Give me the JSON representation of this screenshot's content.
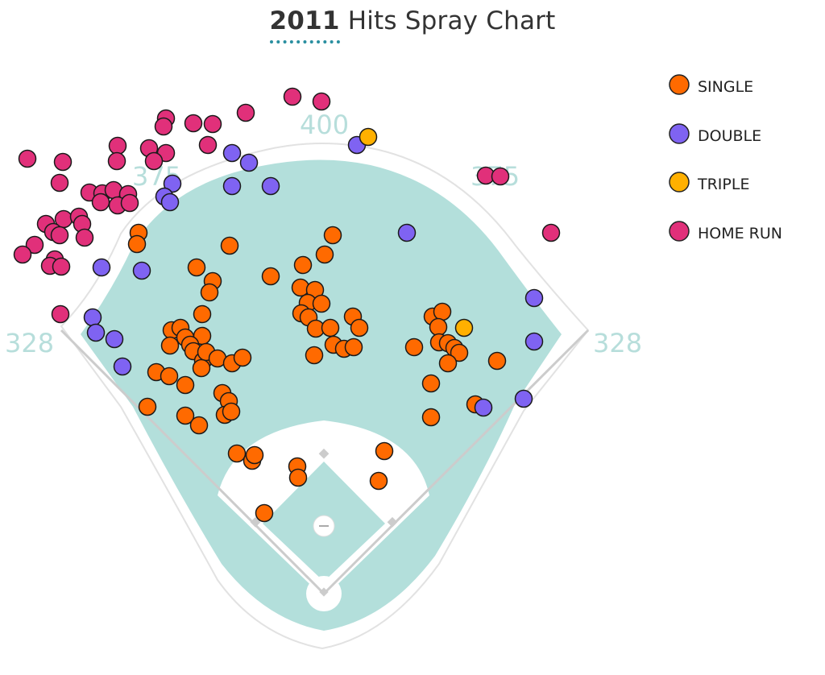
{
  "header": {
    "year": "2011",
    "title_rest": "Hits Spray Chart"
  },
  "distance_labels": {
    "left_line": "328",
    "left_center": "375",
    "center": "400",
    "right_center": "375",
    "right_line": "328"
  },
  "colors": {
    "SINGLE": "#ff6a00",
    "DOUBLE": "#7f63f2",
    "TRIPLE": "#ffb000",
    "HOME RUN": "#e1307a",
    "field": "#b3dfdb",
    "infield": "#ffffff",
    "lines": "#cccccc"
  },
  "chart_data": {
    "type": "scatter",
    "title": "2011 Hits Spray Chart",
    "legend": [
      "SINGLE",
      "DOUBLE",
      "TRIPLE",
      "HOME RUN"
    ],
    "legend_position": "top-right",
    "series": [
      {
        "name": "SINGLE",
        "points": [
          [
            285,
            305
          ],
          [
            244,
            332
          ],
          [
            264,
            349
          ],
          [
            260,
            363
          ],
          [
            336,
            343
          ],
          [
            251,
            390
          ],
          [
            213,
            410
          ],
          [
            224,
            407
          ],
          [
            230,
            419
          ],
          [
            251,
            417
          ],
          [
            211,
            429
          ],
          [
            236,
            428
          ],
          [
            240,
            436
          ],
          [
            252,
            448
          ],
          [
            256,
            437
          ],
          [
            270,
            445
          ],
          [
            288,
            451
          ],
          [
            301,
            444
          ],
          [
            250,
            457
          ],
          [
            194,
            462
          ],
          [
            210,
            467
          ],
          [
            230,
            478
          ],
          [
            276,
            488
          ],
          [
            284,
            498
          ],
          [
            279,
            515
          ],
          [
            287,
            511
          ],
          [
            183,
            505
          ],
          [
            230,
            516
          ],
          [
            247,
            528
          ],
          [
            172,
            289
          ],
          [
            170,
            303
          ],
          [
            413,
            292
          ],
          [
            403,
            316
          ],
          [
            376,
            329
          ],
          [
            373,
            357
          ],
          [
            391,
            360
          ],
          [
            382,
            376
          ],
          [
            399,
            377
          ],
          [
            374,
            389
          ],
          [
            383,
            394
          ],
          [
            392,
            408
          ],
          [
            410,
            407
          ],
          [
            414,
            428
          ],
          [
            427,
            433
          ],
          [
            439,
            431
          ],
          [
            438,
            393
          ],
          [
            446,
            407
          ],
          [
            390,
            441
          ],
          [
            514,
            431
          ],
          [
            537,
            393
          ],
          [
            549,
            387
          ],
          [
            544,
            406
          ],
          [
            545,
            425
          ],
          [
            556,
            426
          ],
          [
            564,
            432
          ],
          [
            570,
            438
          ],
          [
            556,
            451
          ],
          [
            535,
            476
          ],
          [
            617,
            448
          ],
          [
            590,
            502
          ],
          [
            535,
            518
          ],
          [
            294,
            563
          ],
          [
            313,
            572
          ],
          [
            316,
            565
          ],
          [
            369,
            579
          ],
          [
            370,
            593
          ],
          [
            477,
            560
          ],
          [
            470,
            597
          ],
          [
            328,
            637
          ]
        ]
      },
      {
        "name": "DOUBLE",
        "points": [
          [
            288,
            190
          ],
          [
            309,
            202
          ],
          [
            443,
            180
          ],
          [
            214,
            228
          ],
          [
            204,
            244
          ],
          [
            211,
            251
          ],
          [
            288,
            231
          ],
          [
            336,
            231
          ],
          [
            126,
            332
          ],
          [
            176,
            336
          ],
          [
            115,
            394
          ],
          [
            119,
            413
          ],
          [
            142,
            421
          ],
          [
            152,
            455
          ],
          [
            505,
            289
          ],
          [
            663,
            370
          ],
          [
            663,
            424
          ],
          [
            650,
            495
          ],
          [
            600,
            506
          ]
        ]
      },
      {
        "name": "TRIPLE",
        "points": [
          [
            457,
            170
          ],
          [
            576,
            407
          ]
        ]
      },
      {
        "name": "HOME RUN",
        "points": [
          [
            363,
            120
          ],
          [
            399,
            126
          ],
          [
            305,
            140
          ],
          [
            206,
            147
          ],
          [
            203,
            157
          ],
          [
            240,
            153
          ],
          [
            264,
            154
          ],
          [
            258,
            180
          ],
          [
            185,
            184
          ],
          [
            206,
            190
          ],
          [
            146,
            181
          ],
          [
            145,
            200
          ],
          [
            34,
            197
          ],
          [
            78,
            201
          ],
          [
            191,
            200
          ],
          [
            74,
            227
          ],
          [
            111,
            239
          ],
          [
            127,
            240
          ],
          [
            141,
            236
          ],
          [
            159,
            241
          ],
          [
            125,
            251
          ],
          [
            146,
            255
          ],
          [
            161,
            252
          ],
          [
            79,
            272
          ],
          [
            57,
            278
          ],
          [
            98,
            269
          ],
          [
            102,
            278
          ],
          [
            66,
            288
          ],
          [
            74,
            292
          ],
          [
            105,
            295
          ],
          [
            43,
            304
          ],
          [
            28,
            316
          ],
          [
            68,
            322
          ],
          [
            62,
            330
          ],
          [
            76,
            331
          ],
          [
            75,
            390
          ],
          [
            603,
            218
          ],
          [
            621,
            219
          ],
          [
            684,
            289
          ]
        ]
      }
    ]
  }
}
